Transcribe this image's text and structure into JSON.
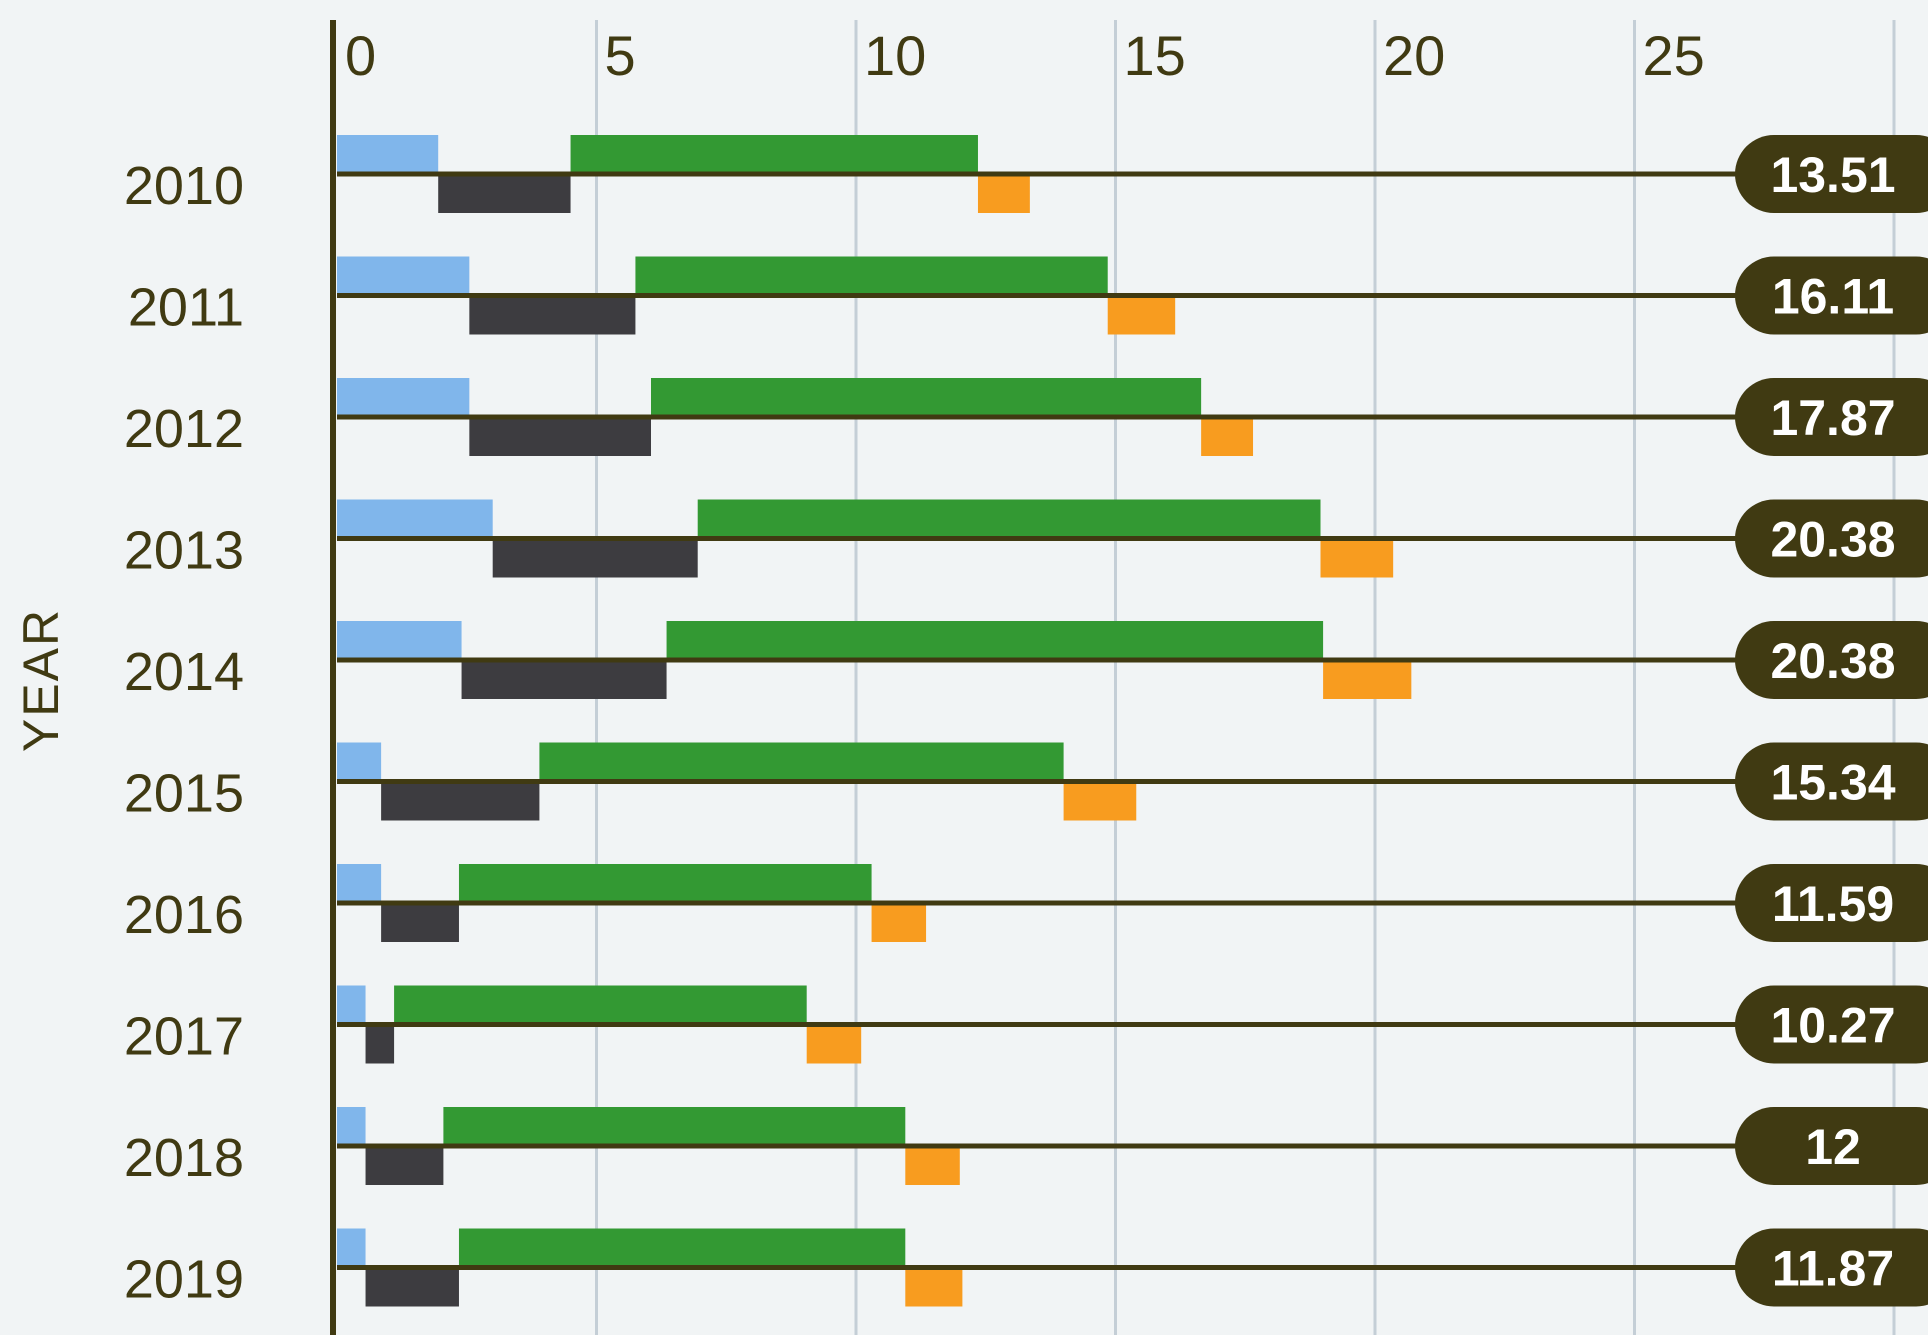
{
  "chart_data": {
    "type": "bar",
    "subtype": "stacked-waterfall",
    "title": "",
    "xlabel": "",
    "ylabel": "YEAR",
    "xlim": [
      0,
      30
    ],
    "x_ticks": [
      "0",
      "5",
      "10",
      "15",
      "20",
      "25"
    ],
    "grid": true,
    "legend": "none",
    "categories": [
      "2010",
      "2011",
      "2012",
      "2013",
      "2014",
      "2015",
      "2016",
      "2017",
      "2018",
      "2019"
    ],
    "totals": [
      "13.51",
      "16.11",
      "17.87",
      "20.38",
      "20.38",
      "15.34",
      "11.59",
      "10.27",
      "12",
      "11.87"
    ],
    "series": [
      {
        "color": "#80b6eb",
        "position": "upper",
        "values": [
          1.95,
          2.55,
          2.55,
          3.0,
          2.4,
          0.85,
          0.85,
          0.55,
          0.55,
          0.55
        ]
      },
      {
        "color": "#3d3c40",
        "position": "lower",
        "values": [
          2.55,
          3.2,
          3.5,
          3.95,
          3.95,
          3.05,
          1.5,
          0.55,
          1.5,
          1.8
        ]
      },
      {
        "color": "#339933",
        "position": "upper",
        "values": [
          7.85,
          9.1,
          10.6,
          12.0,
          12.65,
          10.1,
          7.95,
          7.95,
          8.9,
          8.6
        ]
      },
      {
        "color": "#f89c1f",
        "position": "lower",
        "values": [
          1.0,
          1.3,
          1.0,
          1.4,
          1.7,
          1.4,
          1.05,
          1.05,
          1.05,
          1.1
        ]
      }
    ],
    "colors": {
      "axis": "#403a12",
      "grid": "#c4ced6",
      "badge": "#403a12",
      "badge_text": "#ffffff",
      "background": "#f1f4f5"
    }
  }
}
